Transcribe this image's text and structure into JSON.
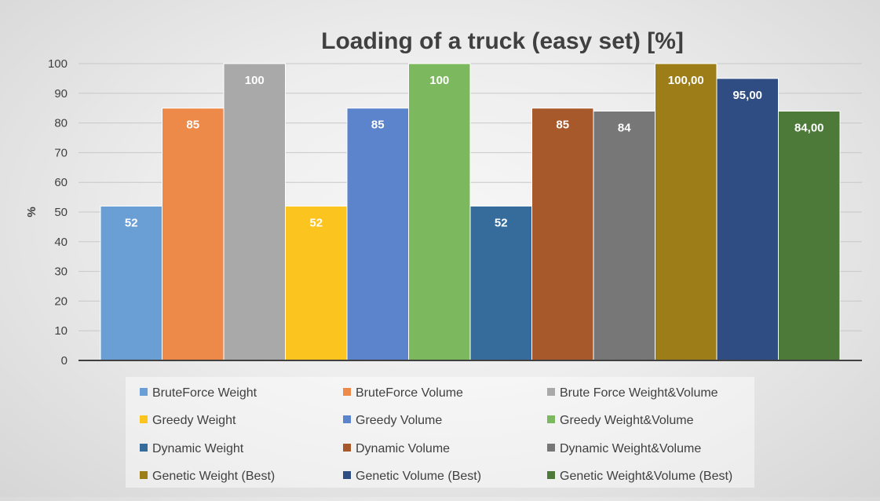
{
  "chart_data": {
    "type": "bar",
    "title": "Loading of a truck (easy set) [%]",
    "xlabel": "",
    "ylabel": "%",
    "ylim": [
      0,
      100
    ],
    "yticks": [
      "0",
      "10",
      "20",
      "30",
      "40",
      "50",
      "60",
      "70",
      "80",
      "90",
      "100"
    ],
    "grid": true,
    "legend_position": "bottom",
    "series": [
      {
        "name": "BruteForce Weight",
        "value": 52,
        "label": "52",
        "color": "#6a9fd6"
      },
      {
        "name": "BruteForce Volume",
        "value": 85,
        "label": "85",
        "color": "#ee8a49"
      },
      {
        "name": "Brute Force Weight&Volume",
        "value": 100,
        "label": "100",
        "color": "#a9a9a9"
      },
      {
        "name": "Greedy Weight",
        "value": 52,
        "label": "52",
        "color": "#fcc41e"
      },
      {
        "name": "Greedy Volume",
        "value": 85,
        "label": "85",
        "color": "#5b84cd"
      },
      {
        "name": "Greedy Weight&Volume",
        "value": 100,
        "label": "100",
        "color": "#7cb95e"
      },
      {
        "name": "Dynamic Weight",
        "value": 52,
        "label": "52",
        "color": "#356c9c"
      },
      {
        "name": "Dynamic Volume",
        "value": 85,
        "label": "85",
        "color": "#a8592c"
      },
      {
        "name": "Dynamic Weight&Volume",
        "value": 84,
        "label": "84",
        "color": "#777777"
      },
      {
        "name": "Genetic Weight (Best)",
        "value": 100,
        "label": "100,00",
        "color": "#9c7d17"
      },
      {
        "name": "Genetic Volume (Best)",
        "value": 95,
        "label": "95,00",
        "color": "#2f4d82"
      },
      {
        "name": "Genetic Weight&Volume (Best)",
        "value": 84,
        "label": "84,00",
        "color": "#4d7a39"
      }
    ]
  }
}
